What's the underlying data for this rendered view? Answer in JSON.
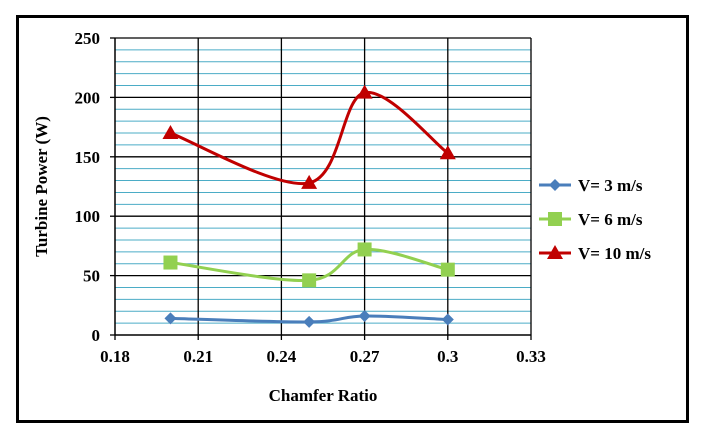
{
  "chart_data": {
    "type": "line",
    "title": "",
    "xlabel": "Chamfer Ratio",
    "ylabel": "Turbine Power (W)",
    "xlim": [
      0.18,
      0.33
    ],
    "ylim": [
      0,
      250
    ],
    "xticks": [
      0.18,
      0.21,
      0.24,
      0.27,
      0.3,
      0.33
    ],
    "xtick_labels": [
      "0.18",
      "0.21",
      "0.24",
      "0.27",
      "0.3",
      "0.33"
    ],
    "yticks": [
      0,
      50,
      100,
      150,
      200,
      250
    ],
    "ytick_labels": [
      "0",
      "50",
      "100",
      "150",
      "200",
      "250"
    ],
    "grid": true,
    "legend_position": "right",
    "x": [
      0.2,
      0.25,
      0.27,
      0.3
    ],
    "series": [
      {
        "name": "V= 3 m/s",
        "color": "#4a7ebb",
        "marker": "diamond",
        "values": [
          14,
          11,
          16,
          13
        ]
      },
      {
        "name": "V= 6 m/s",
        "color": "#92d050",
        "marker": "square",
        "values": [
          61,
          46,
          72,
          55
        ]
      },
      {
        "name": "V= 10 m/s",
        "color": "#c00000",
        "marker": "triangle",
        "values": [
          170,
          128,
          204,
          153
        ]
      }
    ]
  }
}
